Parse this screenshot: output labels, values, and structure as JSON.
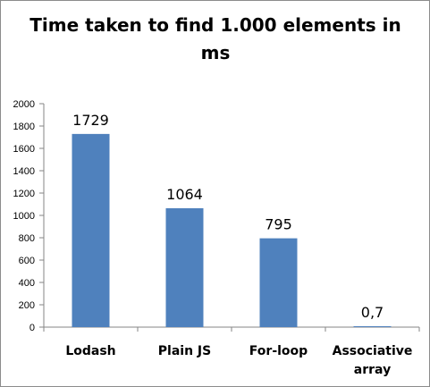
{
  "chart_data": {
    "type": "bar",
    "title": "Time taken to find 1.000 elements in ms",
    "categories": [
      "Lodash",
      "Plain JS",
      "For-loop",
      "Associative array"
    ],
    "category_lines": [
      [
        "Lodash"
      ],
      [
        "Plain JS"
      ],
      [
        "For-loop"
      ],
      [
        "Associative",
        "array"
      ]
    ],
    "values": [
      1729,
      1064,
      795,
      0.7
    ],
    "data_labels": [
      "1729",
      "1064",
      "795",
      "0,7"
    ],
    "ylim": [
      0,
      2000
    ],
    "yticks": [
      0,
      200,
      400,
      600,
      800,
      1000,
      1200,
      1400,
      1600,
      1800,
      2000
    ],
    "xlabel": "",
    "ylabel": "",
    "grid": false,
    "legend": "none",
    "bar_color": "#4f81bd"
  }
}
